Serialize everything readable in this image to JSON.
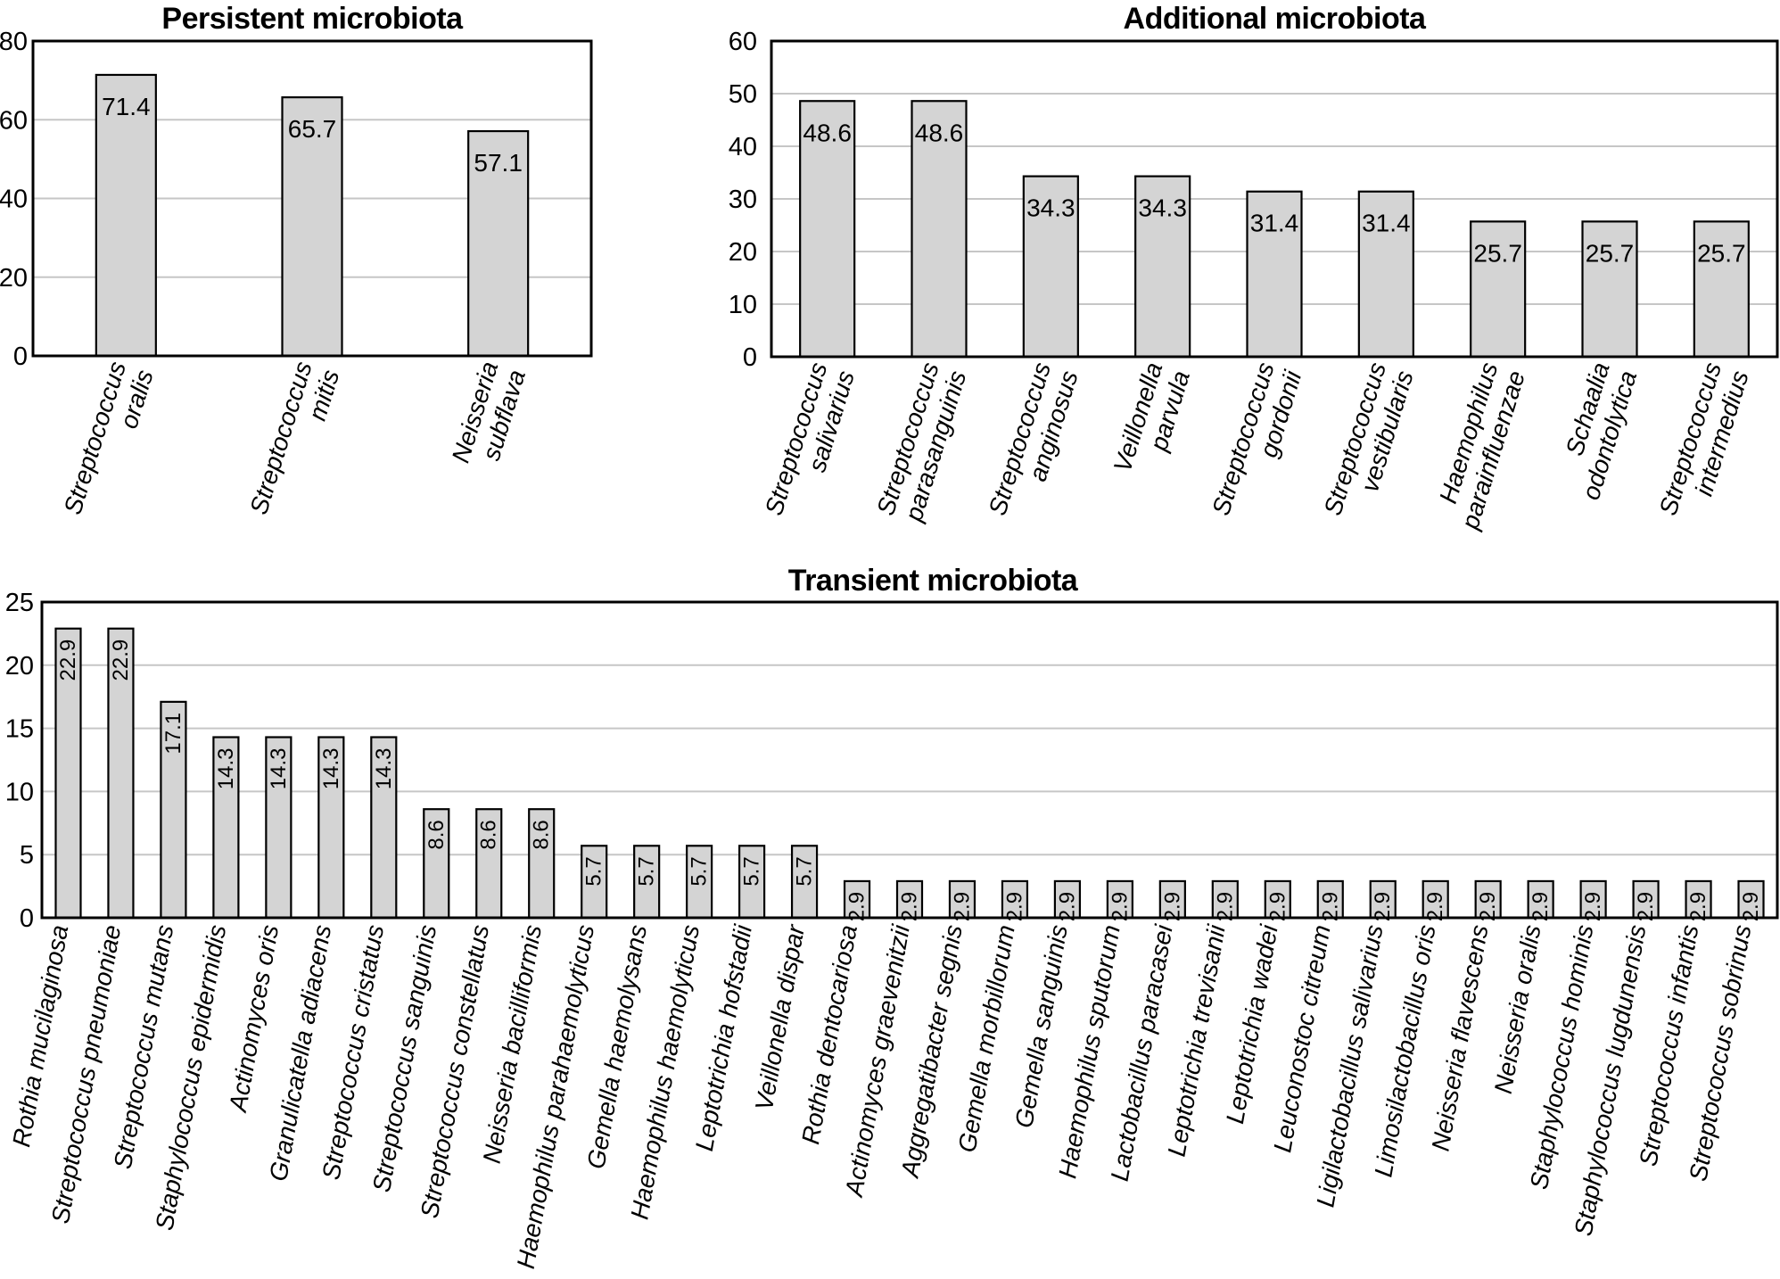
{
  "figure": {
    "description": "Three bar charts of oral microbiota prevalence",
    "value_unit": "%"
  },
  "colors": {
    "bar_fill": "#d4d4d4",
    "bar_border": "#000000",
    "gridline": "#c6c6c6",
    "axis": "#000000",
    "text": "#000000",
    "background": "#ffffff"
  },
  "chart_data": [
    {
      "type": "bar",
      "title": "Persistent microbiota",
      "categories": [
        [
          "Streptococcus",
          "oralis"
        ],
        [
          "Streptococcus",
          "mitis"
        ],
        [
          "Neisseria",
          "subflava"
        ]
      ],
      "values": [
        71.4,
        65.7,
        57.1
      ],
      "xlabel": "",
      "ylabel": "",
      "ylim": [
        0,
        80
      ],
      "yticks": [
        0,
        20,
        40,
        60,
        80
      ],
      "grid": true,
      "legend": "none",
      "value_labels": "horizontal",
      "category_style": "italic-rotated"
    },
    {
      "type": "bar",
      "title": "Additional microbiota",
      "categories": [
        [
          "Streptococcus",
          "salivarius"
        ],
        [
          "Streptococcus",
          "parasanguinis"
        ],
        [
          "Streptococcus",
          "anginosus"
        ],
        [
          "Veillonella",
          "parvula"
        ],
        [
          "Streptococcus",
          "gordonii"
        ],
        [
          "Streptococcus",
          "vestibularis"
        ],
        [
          "Haemophilus",
          "parainfluenzae"
        ],
        [
          "Schaalia",
          "odontolytica"
        ],
        [
          "Streptococcus",
          "intermedius"
        ]
      ],
      "values": [
        48.6,
        48.6,
        34.3,
        34.3,
        31.4,
        31.4,
        25.7,
        25.7,
        25.7
      ],
      "xlabel": "",
      "ylabel": "",
      "ylim": [
        0,
        60
      ],
      "yticks": [
        0,
        10,
        20,
        30,
        40,
        50,
        60
      ],
      "grid": true,
      "legend": "none",
      "value_labels": "horizontal",
      "category_style": "italic-rotated"
    },
    {
      "type": "bar",
      "title": "Transient microbiota",
      "categories": [
        [
          "Rothia mucilaginosa"
        ],
        [
          "Streptococcus pneumoniae"
        ],
        [
          "Streptococcus mutans"
        ],
        [
          "Staphylococcus epidermidis"
        ],
        [
          "Actinomyces oris"
        ],
        [
          "Granulicatella adiacens"
        ],
        [
          "Streptococcus cristatus"
        ],
        [
          "Streptococcus sanguinis"
        ],
        [
          "Streptococcus constellatus"
        ],
        [
          "Neisseria bacilliformis"
        ],
        [
          "Haemophilus parahaemolyticus"
        ],
        [
          "Gemella haemolysans"
        ],
        [
          "Haemophilus haemolyticus"
        ],
        [
          "Leptotrichia hofstadii"
        ],
        [
          "Veillonella dispar"
        ],
        [
          "Rothia dentocariosa"
        ],
        [
          "Actinomyces graevenitzii"
        ],
        [
          "Aggregatibacter segnis"
        ],
        [
          "Gemella morbillorum"
        ],
        [
          "Gemella sanguinis"
        ],
        [
          "Haemophilus sputorum"
        ],
        [
          "Lactobacillus paracasei"
        ],
        [
          "Leptotrichia trevisanii"
        ],
        [
          "Leptotrichia wadei"
        ],
        [
          "Leuconostoc citreum"
        ],
        [
          "Ligilactobacillus salivarius"
        ],
        [
          "Limosilactobacillus oris"
        ],
        [
          "Neisseria flavescens"
        ],
        [
          "Neisseria oralis"
        ],
        [
          "Staphylococcus hominis"
        ],
        [
          "Staphylococcus lugdunensis"
        ],
        [
          "Streptococcus infantis"
        ],
        [
          "Streptococcus sobrinus"
        ]
      ],
      "values": [
        22.9,
        22.9,
        17.1,
        14.3,
        14.3,
        14.3,
        14.3,
        8.6,
        8.6,
        8.6,
        5.7,
        5.7,
        5.7,
        5.7,
        5.7,
        2.9,
        2.9,
        2.9,
        2.9,
        2.9,
        2.9,
        2.9,
        2.9,
        2.9,
        2.9,
        2.9,
        2.9,
        2.9,
        2.9,
        2.9,
        2.9,
        2.9,
        2.9
      ],
      "xlabel": "",
      "ylabel": "",
      "ylim": [
        0,
        25
      ],
      "yticks": [
        0,
        5,
        10,
        15,
        20,
        25
      ],
      "grid": true,
      "legend": "none",
      "value_labels": "vertical",
      "category_style": "italic-rotated"
    }
  ]
}
